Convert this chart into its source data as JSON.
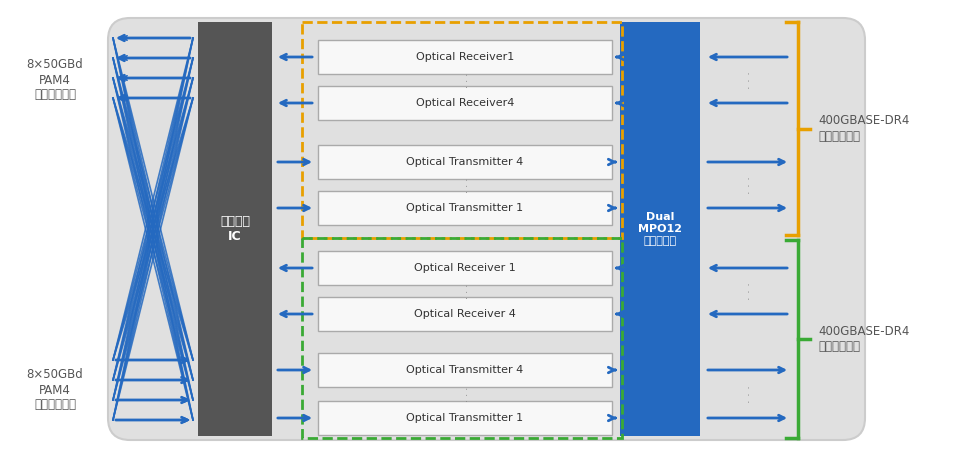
{
  "fig_width": 9.61,
  "fig_height": 4.58,
  "arrow_color": "#2469C0",
  "arrow_lw": 2.0,
  "ic_color": "#555555",
  "mpo_color": "#2469C0",
  "box_bg": "#f0f0f0",
  "main_bg": "#e0e0e0",
  "optical_bg": "#f8f8f8",
  "optical_border": "#aaaaaa",
  "text_color": "#555555",
  "white": "#ffffff",
  "yellow": "#e8a000",
  "green": "#3aaa35",
  "left_label_top": "8×50GBd\nPAM4\n電気信号出力",
  "left_label_bot": "8×50GBd\nPAM4\n電気信号入力",
  "ic_label": "信号処理\nIC",
  "mpo_label": "Dual\nMPO12\nコネクター",
  "right_label_top": "400GBASE-DR4\n光信号入出力",
  "right_label_bot": "400GBASE-DR4\n光信号入出力",
  "top_boxes": [
    "Optical Receiver1",
    "Optical Receiver4",
    "Optical Transmitter 4",
    "Optical Transmitter 1"
  ],
  "bot_boxes": [
    "Optical Receiver 1",
    "Optical Receiver 4",
    "Optical Transmitter 4",
    "Optical Transmitter 1"
  ]
}
